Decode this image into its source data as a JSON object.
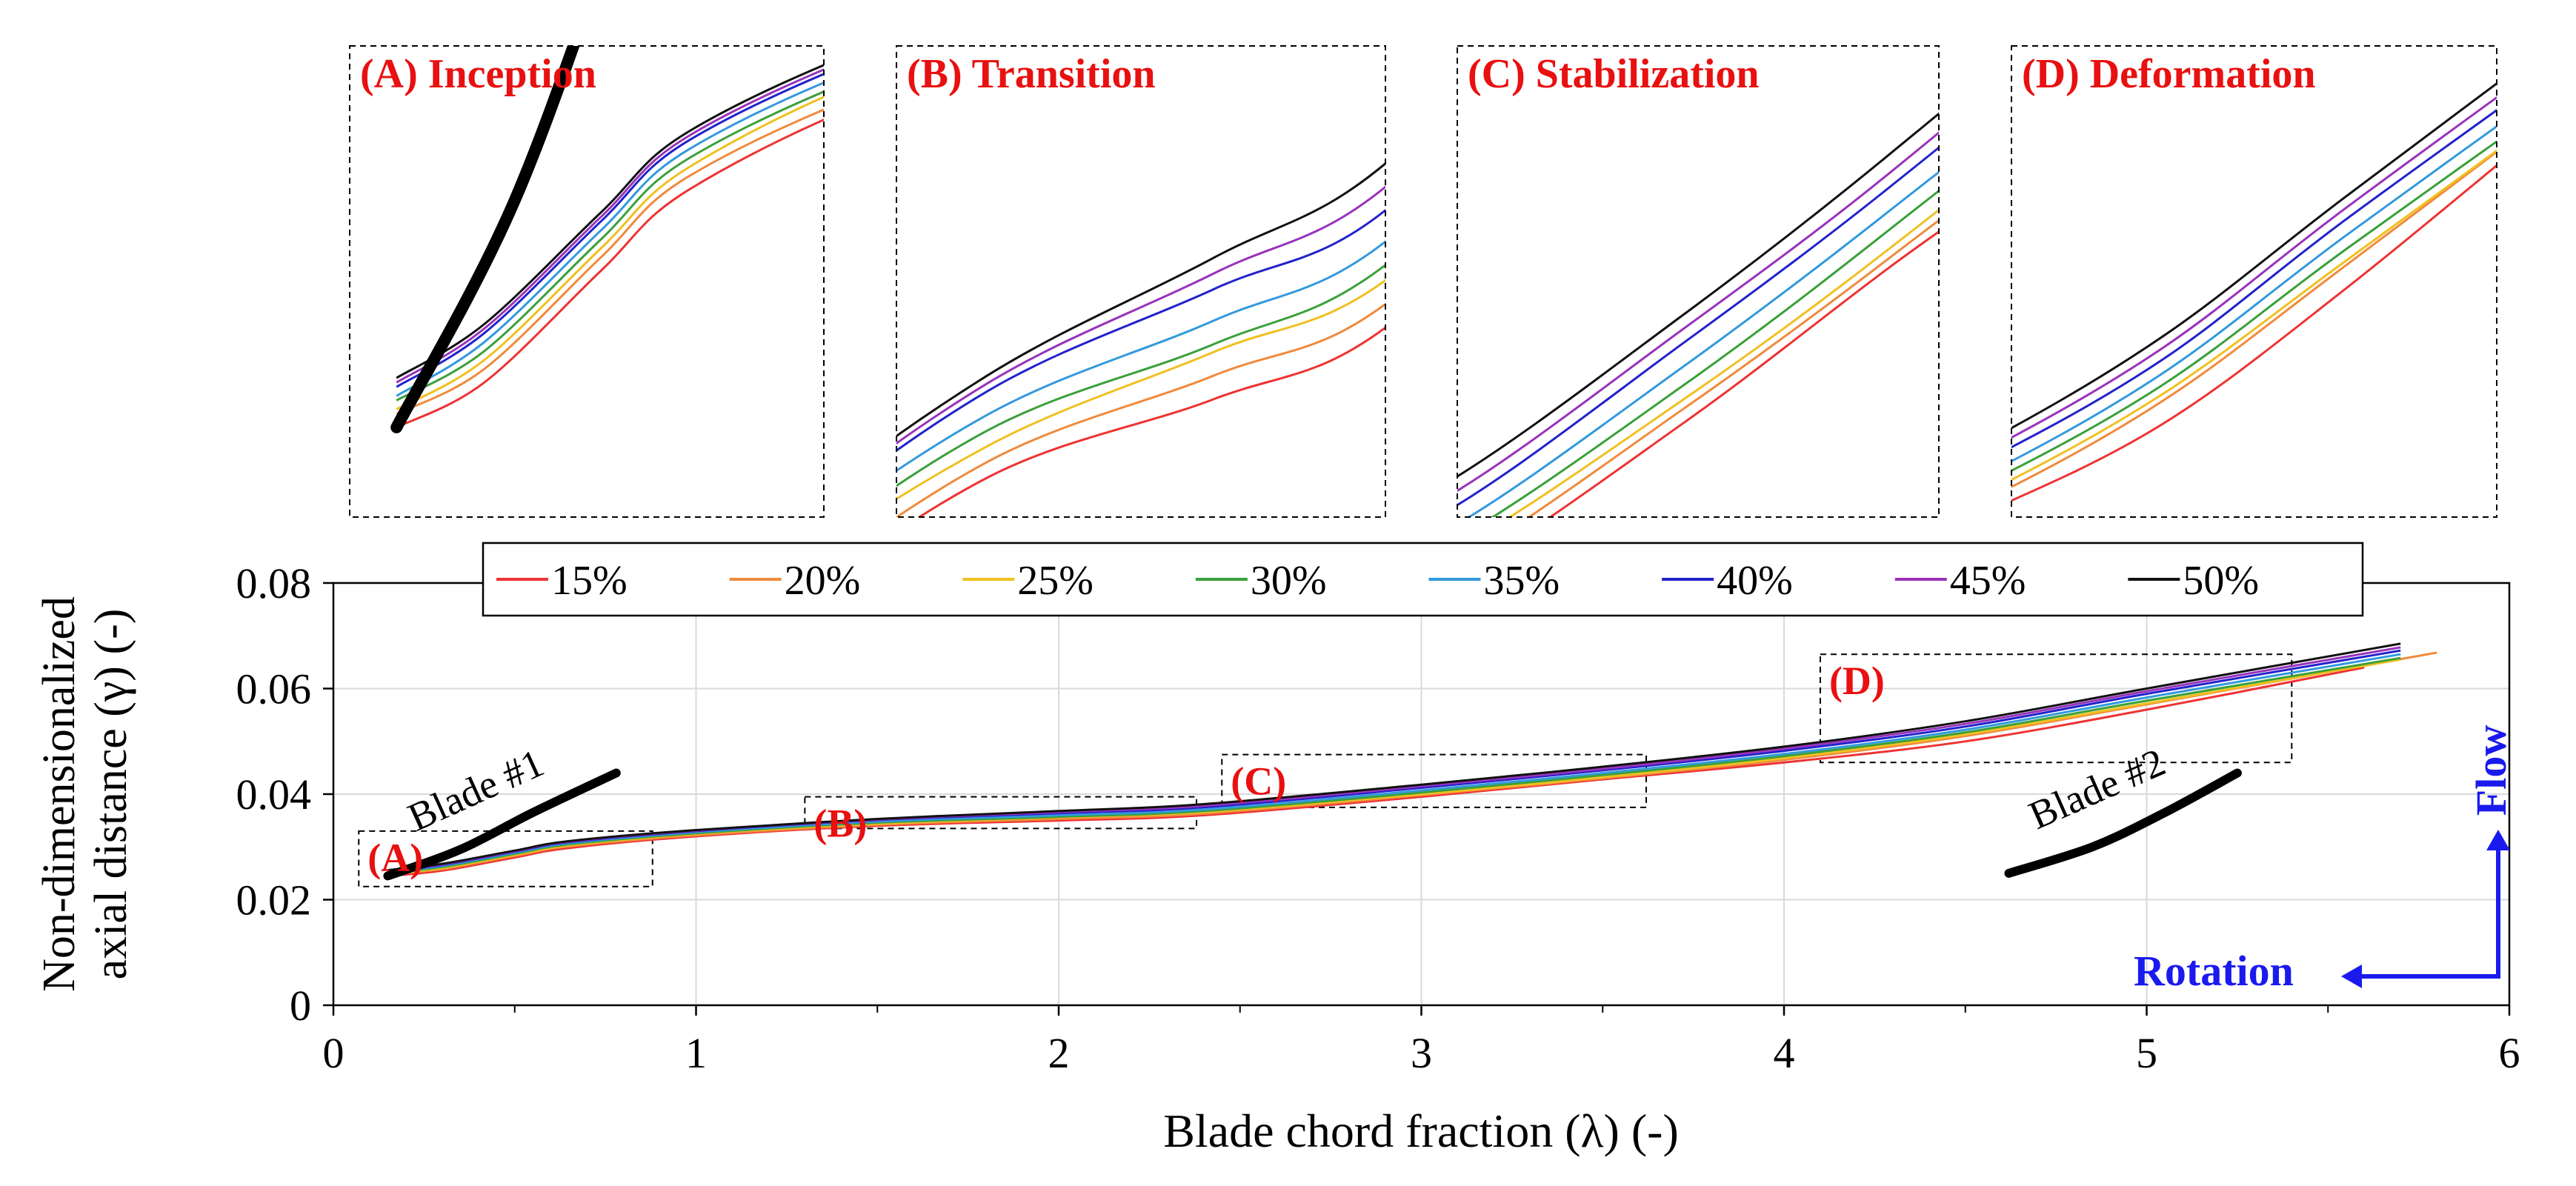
{
  "chart_data": {
    "type": "line",
    "xlabel": "Blade chord fraction (λ) (-)",
    "ylabel_line1": "Non-dimensionalized",
    "ylabel_line2": "axial distance (γ) (-)",
    "xlim": [
      0,
      6
    ],
    "ylim": [
      0,
      0.08
    ],
    "xticks": [
      "0",
      "1",
      "2",
      "3",
      "4",
      "5",
      "6"
    ],
    "yticks": [
      "0",
      "0.02",
      "0.04",
      "0.06",
      "0.08"
    ],
    "grid": true,
    "legend_position": "top",
    "series": [
      {
        "name": "15%",
        "color": "#ee3333",
        "x": [
          0.15,
          0.3,
          0.5,
          0.65,
          1.0,
          1.5,
          2.0,
          2.4,
          3.0,
          3.5,
          4.0,
          4.5,
          5.0,
          5.6
        ],
        "y": [
          0.0245,
          0.0255,
          0.028,
          0.0298,
          0.032,
          0.034,
          0.035,
          0.036,
          0.0395,
          0.0428,
          0.046,
          0.05,
          0.056,
          0.064
        ]
      },
      {
        "name": "20%",
        "color": "#f08a3c",
        "x": [
          0.15,
          0.3,
          0.5,
          0.65,
          1.0,
          1.5,
          2.0,
          2.4,
          3.0,
          3.5,
          4.0,
          4.5,
          5.0,
          5.8
        ],
        "y": [
          0.0248,
          0.0258,
          0.0283,
          0.0301,
          0.0322,
          0.0342,
          0.0353,
          0.0363,
          0.0398,
          0.043,
          0.0465,
          0.051,
          0.057,
          0.0668
        ]
      },
      {
        "name": "25%",
        "color": "#f0c020",
        "x": [
          0.15,
          0.3,
          0.5,
          0.65,
          1.0,
          1.5,
          2.0,
          2.4,
          3.0,
          3.5,
          4.0,
          4.5,
          5.0,
          5.7
        ],
        "y": [
          0.0249,
          0.026,
          0.0285,
          0.0303,
          0.0325,
          0.0344,
          0.0356,
          0.0366,
          0.04,
          0.0432,
          0.0468,
          0.0513,
          0.0572,
          0.0655
        ]
      },
      {
        "name": "30%",
        "color": "#3aa03a",
        "x": [
          0.15,
          0.3,
          0.5,
          0.65,
          1.0,
          1.5,
          2.0,
          2.4,
          3.0,
          3.5,
          4.0,
          4.5,
          5.0,
          5.7
        ],
        "y": [
          0.0251,
          0.0262,
          0.0287,
          0.0305,
          0.0326,
          0.0346,
          0.0357,
          0.0368,
          0.0403,
          0.0436,
          0.0472,
          0.0517,
          0.0577,
          0.0658
        ]
      },
      {
        "name": "35%",
        "color": "#3399dd",
        "x": [
          0.15,
          0.3,
          0.5,
          0.65,
          1.0,
          1.5,
          2.0,
          2.4,
          3.0,
          3.5,
          4.0,
          4.5,
          5.0,
          5.7
        ],
        "y": [
          0.0252,
          0.0264,
          0.0289,
          0.0307,
          0.0328,
          0.0348,
          0.036,
          0.0371,
          0.0407,
          0.044,
          0.0476,
          0.0522,
          0.0583,
          0.0665
        ]
      },
      {
        "name": "40%",
        "color": "#2222cc",
        "x": [
          0.15,
          0.3,
          0.5,
          0.65,
          1.0,
          1.5,
          2.0,
          2.4,
          3.0,
          3.5,
          4.0,
          4.5,
          5.0,
          5.7
        ],
        "y": [
          0.0254,
          0.0266,
          0.0291,
          0.0309,
          0.033,
          0.0351,
          0.0364,
          0.0375,
          0.0412,
          0.0445,
          0.0482,
          0.0528,
          0.059,
          0.0672
        ]
      },
      {
        "name": "45%",
        "color": "#9933bb",
        "x": [
          0.15,
          0.3,
          0.5,
          0.65,
          1.0,
          1.5,
          2.0,
          2.4,
          3.0,
          3.5,
          4.0,
          4.5,
          5.0,
          5.7
        ],
        "y": [
          0.0255,
          0.0267,
          0.0292,
          0.031,
          0.0331,
          0.0352,
          0.0366,
          0.0378,
          0.0415,
          0.0448,
          0.0486,
          0.0533,
          0.0595,
          0.0678
        ]
      },
      {
        "name": "50%",
        "color": "#111111",
        "x": [
          0.15,
          0.3,
          0.5,
          0.65,
          1.0,
          1.5,
          2.0,
          2.4,
          3.0,
          3.5,
          4.0,
          4.5,
          5.0,
          5.7
        ],
        "y": [
          0.0256,
          0.0268,
          0.0293,
          0.0311,
          0.0332,
          0.0353,
          0.0368,
          0.0381,
          0.0418,
          0.0452,
          0.049,
          0.0538,
          0.06,
          0.0685
        ]
      }
    ],
    "blades": [
      {
        "label": "Blade #1",
        "x": [
          0.15,
          0.35,
          0.55,
          0.78
        ],
        "y": [
          0.0245,
          0.0295,
          0.0365,
          0.044
        ]
      },
      {
        "label": "Blade #2",
        "x": [
          4.62,
          4.85,
          5.05,
          5.25
        ],
        "y": [
          0.025,
          0.03,
          0.0365,
          0.044
        ]
      }
    ],
    "regions": [
      {
        "label": "(A)",
        "x": [
          0.07,
          0.88
        ],
        "y": [
          0.0225,
          0.033
        ]
      },
      {
        "label": "(B)",
        "x": [
          1.3,
          2.38
        ],
        "y": [
          0.0335,
          0.0395
        ]
      },
      {
        "label": "(C)",
        "x": [
          2.45,
          3.62
        ],
        "y": [
          0.0375,
          0.0475
        ]
      },
      {
        "label": "(D)",
        "x": [
          4.1,
          5.4
        ],
        "y": [
          0.046,
          0.0665
        ]
      }
    ],
    "insets": [
      {
        "title": "(A) Inception"
      },
      {
        "title": "(B) Transition"
      },
      {
        "title": "(C) Stabilization"
      },
      {
        "title": "(D) Deformation"
      }
    ],
    "annotations": {
      "flow": "Flow",
      "rotation": "Rotation"
    }
  }
}
